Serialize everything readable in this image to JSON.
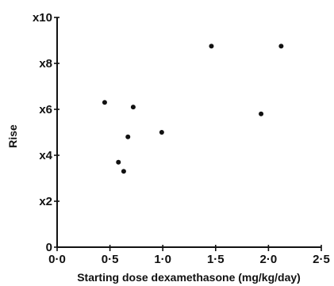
{
  "chart_data": {
    "type": "scatter",
    "title": "",
    "xlabel": "Starting dose dexamethasone (mg/kg/day)",
    "ylabel": "Rise",
    "xlim": [
      0,
      2.5
    ],
    "ylim": [
      0,
      10
    ],
    "x_ticks": [
      {
        "value": 0,
        "label": "0·0"
      },
      {
        "value": 0.5,
        "label": "0·5"
      },
      {
        "value": 1.0,
        "label": "1·0"
      },
      {
        "value": 1.5,
        "label": "1·5"
      },
      {
        "value": 2.0,
        "label": "2·0"
      },
      {
        "value": 2.5,
        "label": "2·5"
      }
    ],
    "y_ticks": [
      {
        "value": 0,
        "label": "0"
      },
      {
        "value": 2,
        "label": "x2"
      },
      {
        "value": 4,
        "label": "x4"
      },
      {
        "value": 6,
        "label": "x6"
      },
      {
        "value": 8,
        "label": "x8"
      },
      {
        "value": 10,
        "label": "x10"
      }
    ],
    "grid": false,
    "legend": "none",
    "points": [
      {
        "x": 0.45,
        "y": 6.3
      },
      {
        "x": 0.58,
        "y": 3.7
      },
      {
        "x": 0.63,
        "y": 3.3
      },
      {
        "x": 0.67,
        "y": 4.8
      },
      {
        "x": 0.72,
        "y": 6.1
      },
      {
        "x": 0.99,
        "y": 5.0
      },
      {
        "x": 1.46,
        "y": 8.75
      },
      {
        "x": 1.93,
        "y": 5.8
      },
      {
        "x": 2.12,
        "y": 8.75
      }
    ],
    "point_color": "#111111"
  }
}
